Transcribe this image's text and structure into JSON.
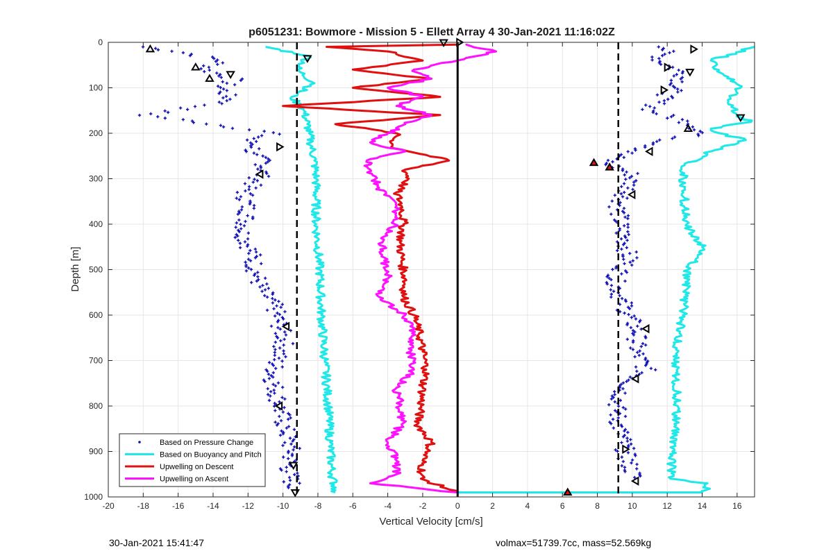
{
  "chart_data": {
    "type": "line",
    "title": "p6051231: Bowmore - Mission 5 - Ellett Array 4 30-Jan-2021 11:16:02Z",
    "xlabel": "Vertical Velocity [cm/s]",
    "ylabel": "Depth [m]",
    "xlim": [
      -20,
      17
    ],
    "ylim": [
      0,
      1000
    ],
    "y_reversed": true,
    "grid": true,
    "legend_placement": "bottom-left",
    "x_ticks": [
      -20,
      -18,
      -16,
      -14,
      -12,
      -10,
      -8,
      -6,
      -4,
      -2,
      0,
      2,
      4,
      6,
      8,
      10,
      12,
      14,
      16
    ],
    "y_ticks": [
      0,
      100,
      200,
      300,
      400,
      500,
      600,
      700,
      800,
      900,
      1000
    ],
    "reference_lines": [
      {
        "style": "dashed",
        "color": "#000000",
        "x": -9.2
      },
      {
        "style": "dashed",
        "color": "#000000",
        "x": 9.2
      },
      {
        "style": "solid",
        "color": "#000000",
        "x": 0
      }
    ],
    "series": [
      {
        "name": "Based on Pressure Change",
        "color": "#0a0ab4",
        "marker": "plus",
        "branches": [
          {
            "depth": [
              10,
              20,
              40,
              60,
              80,
              100,
              130,
              160,
              180,
              200,
              215,
              230,
              245,
              260,
              290,
              330,
              370,
              420,
              460,
              500,
              540,
              580,
              620,
              660,
              700,
              740,
              780,
              820,
              860,
              900,
              940,
              980
            ],
            "velocity": [
              -18,
              -16,
              -13.5,
              -14.5,
              -12.8,
              -13.5,
              -13,
              -18,
              -14,
              -10.5,
              -12,
              -11.5,
              -12,
              -11,
              -11.2,
              -12.2,
              -12,
              -12.3,
              -11.8,
              -11.6,
              -11.3,
              -10.5,
              -10.2,
              -9.9,
              -10.4,
              -10.6,
              -10.3,
              -10.1,
              -9.8,
              -9.5,
              -9.7,
              -9.4
            ]
          },
          {
            "depth": [
              10,
              40,
              70,
              100,
              130,
              150,
              180,
              200,
              215,
              230,
              245,
              265,
              290,
              320,
              360,
              400,
              440,
              480,
              520,
              560,
              600,
              640,
              680,
              720,
              760,
              800,
              840,
              880,
              920,
              960
            ],
            "velocity": [
              12,
              11.5,
              13,
              12.5,
              11.5,
              11,
              13.5,
              14,
              12,
              11,
              9.5,
              8.5,
              10,
              9.8,
              9.2,
              9.3,
              9.6,
              9.8,
              9,
              9.3,
              9.8,
              10.3,
              10.2,
              10.8,
              9.5,
              9.1,
              9.2,
              9.5,
              9.7,
              10.2
            ]
          }
        ]
      },
      {
        "name": "Based on Buoyancy and Pitch",
        "color": "#20e8e8",
        "marker": "line",
        "branches": [
          {
            "depth": [
              10,
              30,
              60,
              90,
              120,
              150,
              180,
              200,
              220,
              260,
              300,
              400,
              500,
              600,
              700,
              800,
              880,
              950,
              985,
              990
            ],
            "velocity": [
              -11,
              -8.5,
              -9.2,
              -8.2,
              -9.5,
              -8.8,
              -8.6,
              -8.5,
              -8.4,
              -8.2,
              -8.1,
              -8.1,
              -7.9,
              -7.8,
              -7.6,
              -7.4,
              -7.3,
              -7.2,
              -7,
              -7
            ]
          },
          {
            "depth": [
              990,
              990,
              985,
              970,
              960,
              900,
              800,
              700,
              600,
              500,
              450,
              400,
              300,
              270,
              240,
              215,
              200,
              190,
              175,
              160,
              130,
              100,
              70,
              40,
              10
            ],
            "velocity": [
              0,
              14,
              14.2,
              14.3,
              12.2,
              12.3,
              12.6,
              12.4,
              12.9,
              13.2,
              14,
              13.1,
              12.9,
              13,
              14.5,
              16.5,
              15,
              14.5,
              16.8,
              16,
              15.5,
              16.2,
              15.2,
              14.5,
              17
            ]
          }
        ]
      },
      {
        "name": "Upwelling on Descent",
        "color": "#e01010",
        "marker": "line",
        "branches": [
          {
            "depth": [
              5,
              10,
              20,
              40,
              60,
              80,
              100,
              120,
              140,
              160,
              180,
              200,
              230,
              260,
              280,
              300,
              330,
              360,
              400,
              440,
              480,
              520,
              560,
              600,
              640,
              680,
              720,
              760,
              800,
              840,
              880,
              920,
              960,
              990
            ],
            "velocity": [
              0,
              -7.5,
              -4,
              -2,
              -6,
              -1.5,
              -6,
              -1,
              -10,
              -1,
              -7,
              -3.5,
              -3.8,
              -0.5,
              -3,
              -2.8,
              -3.5,
              -3.2,
              -3.1,
              -3.3,
              -3.2,
              -3,
              -3.1,
              -2.5,
              -2.2,
              -2,
              -1.8,
              -2,
              -2.1,
              -2.3,
              -1.5,
              -2,
              -2.1,
              0
            ]
          }
        ]
      },
      {
        "name": "Upwelling on Ascent",
        "color": "#ff10ff",
        "marker": "line",
        "branches": [
          {
            "depth": [
              990,
              970,
              950,
              920,
              880,
              840,
              800,
              760,
              720,
              680,
              640,
              600,
              560,
              520,
              480,
              440,
              400,
              360,
              320,
              280,
              260,
              240,
              220,
              200,
              180,
              160,
              140,
              120,
              100,
              80,
              60,
              40,
              20,
              5
            ],
            "velocity": [
              0,
              -5,
              -3.5,
              -3.5,
              -4,
              -3.2,
              -3.3,
              -3.5,
              -2.5,
              -2.7,
              -2.6,
              -3,
              -4.5,
              -4,
              -4.2,
              -4.3,
              -3.6,
              -3.5,
              -4.5,
              -5,
              -5.2,
              -3,
              -5,
              -4,
              -3,
              -1.5,
              -3.5,
              -2,
              -4,
              -1.5,
              -2.5,
              0,
              2.2,
              0.5
            ]
          }
        ]
      }
    ],
    "legend": [
      "Based on Pressure Change",
      "Based on Buoyancy and Pitch",
      "Upwelling on Descent",
      "Upwelling on Ascent"
    ],
    "markers": [
      {
        "shape": "triangle-up",
        "depth": 15,
        "velocity": -17.6
      },
      {
        "shape": "triangle-up",
        "depth": 55,
        "velocity": -15
      },
      {
        "shape": "triangle-up",
        "depth": 80,
        "velocity": -14.2
      },
      {
        "shape": "triangle-down",
        "depth": 35,
        "velocity": -8.6
      },
      {
        "shape": "triangle-down",
        "depth": 70,
        "velocity": -13
      },
      {
        "shape": "triangle-right",
        "depth": 230,
        "velocity": -10.2
      },
      {
        "shape": "triangle-left",
        "depth": 290,
        "velocity": -11.3
      },
      {
        "shape": "triangle-left",
        "depth": 625,
        "velocity": -9.8
      },
      {
        "shape": "triangle-left",
        "depth": 800,
        "velocity": -10.2
      },
      {
        "shape": "triangle-down",
        "depth": 930,
        "velocity": -9.4
      },
      {
        "shape": "triangle-down",
        "depth": 990,
        "velocity": -9.3
      },
      {
        "shape": "triangle-right",
        "depth": 15,
        "velocity": 13.5
      },
      {
        "shape": "triangle-right",
        "depth": 55,
        "velocity": 12
      },
      {
        "shape": "triangle-down",
        "depth": 65,
        "velocity": 13.3
      },
      {
        "shape": "triangle-right",
        "depth": 105,
        "velocity": 11.8
      },
      {
        "shape": "triangle-down",
        "depth": 165,
        "velocity": 16.2
      },
      {
        "shape": "triangle-up",
        "depth": 190,
        "velocity": 13.2
      },
      {
        "shape": "triangle-left",
        "depth": 240,
        "velocity": 11
      },
      {
        "shape": "triangle-left",
        "depth": 335,
        "velocity": 10
      },
      {
        "shape": "triangle-left",
        "depth": 630,
        "velocity": 10.8
      },
      {
        "shape": "triangle-left",
        "depth": 740,
        "velocity": 10.2
      },
      {
        "shape": "triangle-right",
        "depth": 895,
        "velocity": 9.6
      },
      {
        "shape": "triangle-left",
        "depth": 965,
        "velocity": 10.2
      },
      {
        "shape": "triangle-down",
        "depth": 0,
        "velocity": -0.8
      },
      {
        "shape": "triangle-right",
        "depth": 0,
        "velocity": 0.1
      },
      {
        "shape": "filled-triangle-red",
        "depth": 265,
        "velocity": 7.8
      },
      {
        "shape": "filled-triangle-red",
        "depth": 275,
        "velocity": 8.7
      },
      {
        "shape": "filled-triangle-red",
        "depth": 990,
        "velocity": 6.3
      }
    ]
  },
  "footer": {
    "timestamp": "30-Jan-2021 15:41:47",
    "volmax": "volmax=51739.7cc, mass=52.569kg"
  }
}
